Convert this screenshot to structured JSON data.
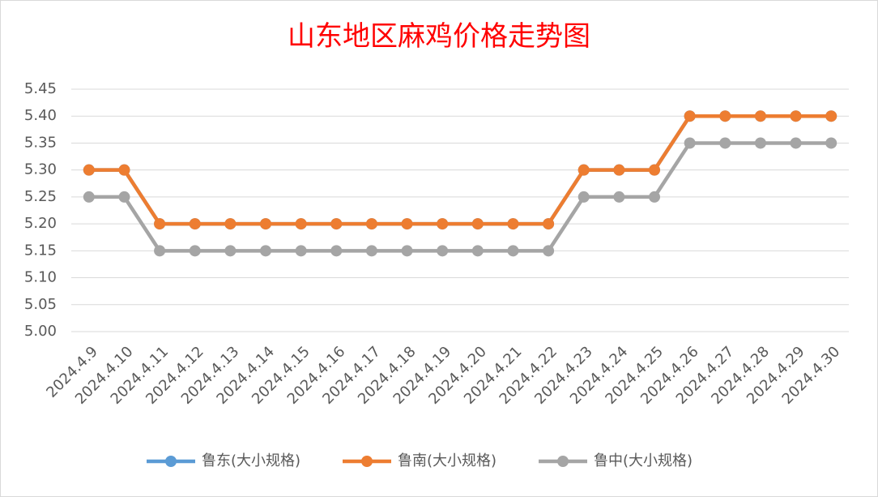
{
  "chart_data": {
    "type": "line",
    "title": "山东地区麻鸡价格走势图",
    "categories": [
      "2024.4.9",
      "2024.4.10",
      "2024.4.11",
      "2024.4.12",
      "2024.4.13",
      "2024.4.14",
      "2024.4.15",
      "2024.4.16",
      "2024.4.17",
      "2024.4.18",
      "2024.4.19",
      "2024.4.20",
      "2024.4.21",
      "2024.4.22",
      "2024.4.23",
      "2024.4.24",
      "2024.4.25",
      "2024.4.26",
      "2024.4.27",
      "2024.4.28",
      "2024.4.29",
      "2024.4.30"
    ],
    "series": [
      {
        "name": "鲁东(大小规格)",
        "color": "#5b9bd5",
        "values": [
          5.3,
          5.3,
          5.2,
          5.2,
          5.2,
          5.2,
          5.2,
          5.2,
          5.2,
          5.2,
          5.2,
          5.2,
          5.2,
          5.2,
          5.3,
          5.3,
          5.3,
          5.4,
          5.4,
          5.4,
          5.4,
          5.4
        ]
      },
      {
        "name": "鲁南(大小规格)",
        "color": "#ed7d31",
        "values": [
          5.3,
          5.3,
          5.2,
          5.2,
          5.2,
          5.2,
          5.2,
          5.2,
          5.2,
          5.2,
          5.2,
          5.2,
          5.2,
          5.2,
          5.3,
          5.3,
          5.3,
          5.4,
          5.4,
          5.4,
          5.4,
          5.4
        ]
      },
      {
        "name": "鲁中(大小规格)",
        "color": "#a5a5a5",
        "values": [
          5.25,
          5.25,
          5.15,
          5.15,
          5.15,
          5.15,
          5.15,
          5.15,
          5.15,
          5.15,
          5.15,
          5.15,
          5.15,
          5.15,
          5.25,
          5.25,
          5.25,
          5.35,
          5.35,
          5.35,
          5.35,
          5.35
        ]
      }
    ],
    "ylim": [
      5.0,
      5.45
    ],
    "yticks": [
      {
        "value": 5.0,
        "label": "5.00"
      },
      {
        "value": 5.05,
        "label": "5.05"
      },
      {
        "value": 5.1,
        "label": "5.10"
      },
      {
        "value": 5.15,
        "label": "5.15"
      },
      {
        "value": 5.2,
        "label": "5.20"
      },
      {
        "value": 5.25,
        "label": "5.25"
      },
      {
        "value": 5.3,
        "label": "5.30"
      },
      {
        "value": 5.35,
        "label": "5.35"
      },
      {
        "value": 5.4,
        "label": "5.40"
      },
      {
        "value": 5.45,
        "label": "5.45"
      }
    ],
    "grid": true
  }
}
